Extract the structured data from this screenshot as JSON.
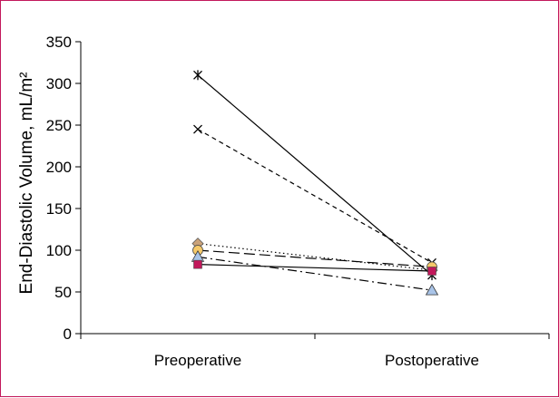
{
  "chart_data": {
    "type": "line",
    "title": "",
    "xlabel": "",
    "ylabel": "End-Diastolic Volume, mL/m²",
    "categories": [
      "Preoperative",
      "Postoperative"
    ],
    "ylim": [
      0,
      350
    ],
    "yticks": [
      0,
      50,
      100,
      150,
      200,
      250,
      300,
      350
    ],
    "grid": false,
    "legend": "none",
    "series": [
      {
        "values": [
          310,
          70
        ],
        "marker": "star",
        "dash": "solid",
        "color": "#000000"
      },
      {
        "values": [
          245,
          85
        ],
        "marker": "x",
        "dash": "dashed",
        "color": "#000000"
      },
      {
        "values": [
          108,
          76
        ],
        "marker": "diamond",
        "dash": "dotted",
        "color": "#c9a27a"
      },
      {
        "values": [
          100,
          80
        ],
        "marker": "circle",
        "dash": "long-dash",
        "color": "#f5c96a"
      },
      {
        "values": [
          92,
          52
        ],
        "marker": "triangle",
        "dash": "dash-dot",
        "color": "#a9c4e8"
      },
      {
        "values": [
          83,
          75
        ],
        "marker": "square",
        "dash": "solid",
        "color": "#c2185b"
      }
    ]
  }
}
